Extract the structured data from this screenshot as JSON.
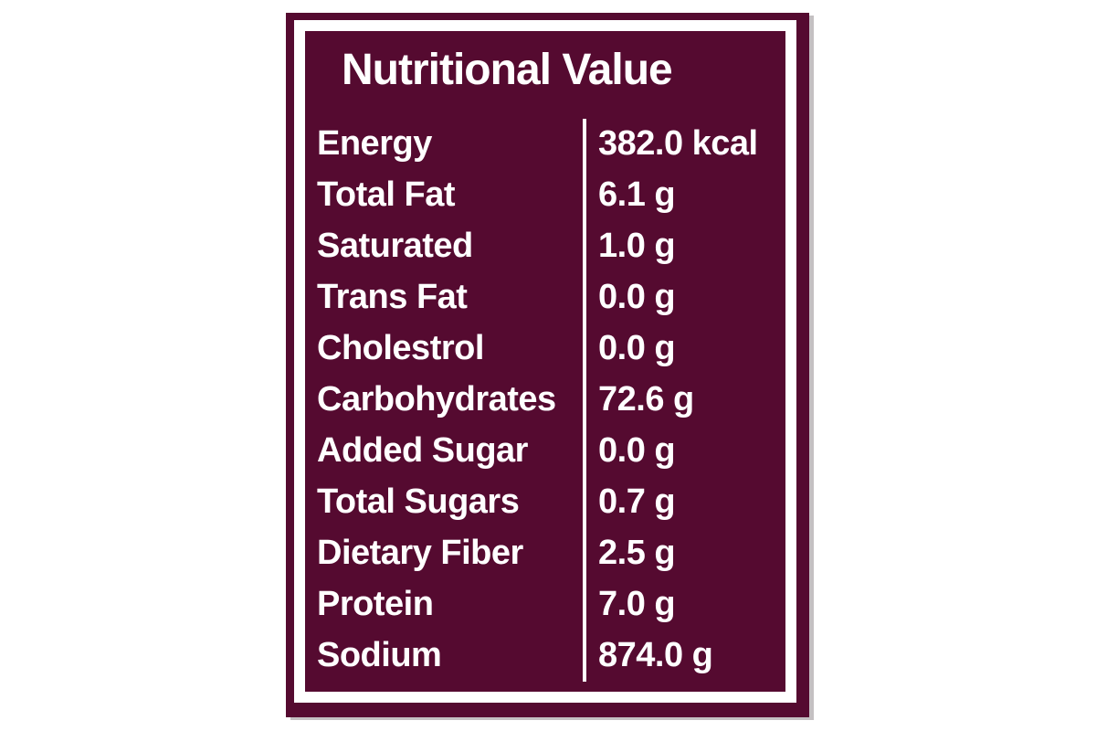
{
  "label": {
    "title": "Nutritional Value",
    "colors": {
      "background": "#550a30",
      "frame": "#ffffff",
      "text": "#ffffff"
    },
    "rows": [
      {
        "name": "Energy",
        "value": "382.0 kcal"
      },
      {
        "name": "Total Fat",
        "value": "6.1 g"
      },
      {
        "name": "Saturated",
        "value": "1.0 g"
      },
      {
        "name": "Trans Fat",
        "value": "0.0 g"
      },
      {
        "name": "Cholestrol",
        "value": "0.0 g"
      },
      {
        "name": "Carbohydrates",
        "value": "72.6 g"
      },
      {
        "name": "Added Sugar",
        "value": "0.0 g"
      },
      {
        "name": "Total Sugars",
        "value": "0.7 g"
      },
      {
        "name": "Dietary Fiber",
        "value": "2.5 g"
      },
      {
        "name": "Protein",
        "value": "7.0 g"
      },
      {
        "name": "Sodium",
        "value": "874.0 g"
      }
    ]
  }
}
